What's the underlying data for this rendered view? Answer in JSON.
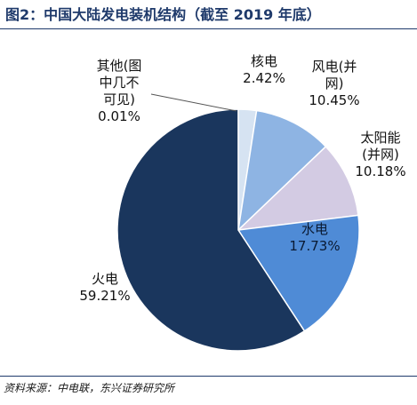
{
  "header": {
    "title": "图2：中国大陆发电装机结构（截至 2019 年底）"
  },
  "chart_data": {
    "type": "pie",
    "title": "图2：中国大陆发电装机结构（截至 2019 年底）",
    "unit": "%",
    "slices": [
      {
        "name": "核电",
        "label_lines": [
          "核电"
        ],
        "value": 2.42,
        "value_label": "2.42%",
        "color": "#d6e3f2"
      },
      {
        "name": "风电(并网)",
        "label_lines": [
          "风电(并",
          "网)"
        ],
        "value": 10.45,
        "value_label": "10.45%",
        "color": "#8eb4e3"
      },
      {
        "name": "太阳能(并网)",
        "label_lines": [
          "太阳能",
          "(并网)"
        ],
        "value": 10.18,
        "value_label": "10.18%",
        "color": "#d3cbe3"
      },
      {
        "name": "水电",
        "label_lines": [
          "水电"
        ],
        "value": 17.73,
        "value_label": "17.73%",
        "color": "#4f8bd6"
      },
      {
        "name": "火电",
        "label_lines": [
          "火电"
        ],
        "value": 59.21,
        "value_label": "59.21%",
        "color": "#1a365d"
      },
      {
        "name": "其他(图中几不可见)",
        "label_lines": [
          "其他(图",
          "中几不",
          "可见)"
        ],
        "value": 0.01,
        "value_label": "0.01%",
        "color": "#c9c9c9"
      }
    ]
  },
  "footer": {
    "source": "资料来源：中电联，东兴证券研究所"
  }
}
